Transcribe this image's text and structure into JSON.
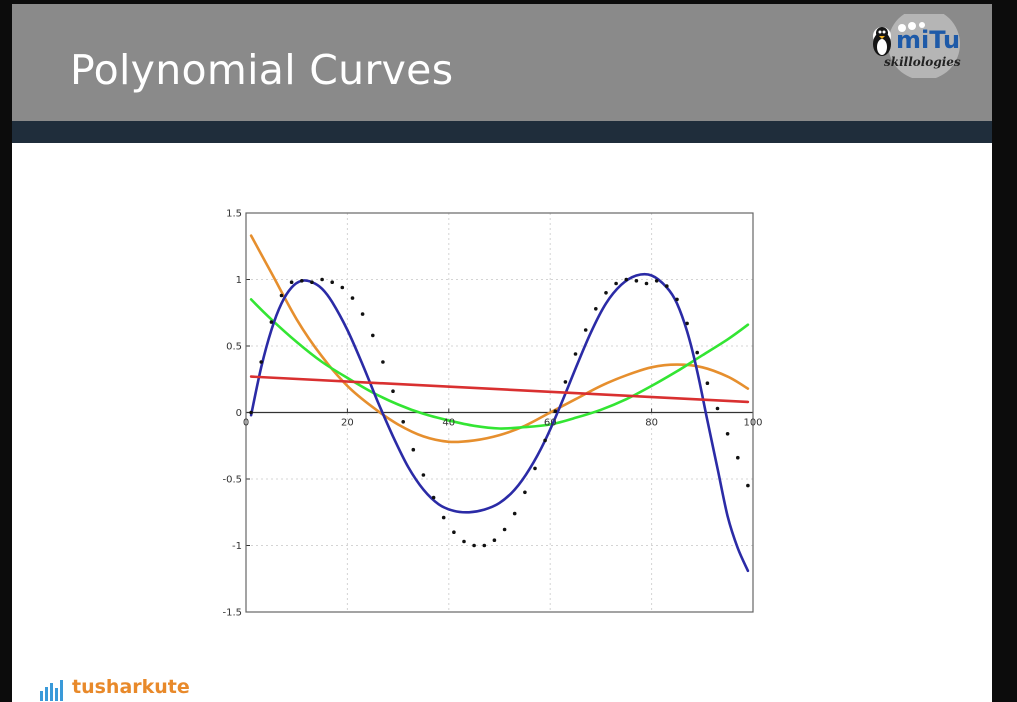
{
  "slide": {
    "title": "Polynomial Curves"
  },
  "logo": {
    "brand": "miTu",
    "tagline": "skillologies"
  },
  "footer": {
    "brand": "tusharkute"
  },
  "colors": {
    "title_bar": "#8a8a8a",
    "stripe": "#1f2d3b",
    "footer_brand": "#e8892a"
  },
  "chart_data": {
    "type": "line",
    "title": "",
    "xlabel": "",
    "ylabel": "",
    "xlim": [
      0,
      100
    ],
    "ylim": [
      -1.5,
      1.5
    ],
    "xticks": [
      {
        "v": 0,
        "label": "0"
      },
      {
        "v": 20,
        "label": "20"
      },
      {
        "v": 40,
        "label": "40"
      },
      {
        "v": 60,
        "label": "60"
      },
      {
        "v": 80,
        "label": "80"
      },
      {
        "v": 100,
        "label": "100"
      }
    ],
    "yticks": [
      {
        "v": 1.5,
        "label": "1.5"
      },
      {
        "v": 1,
        "label": "1"
      },
      {
        "v": 0.5,
        "label": "0.5"
      },
      {
        "v": 0,
        "label": "0"
      },
      {
        "v": -0.5,
        "label": "-0.5"
      },
      {
        "v": -1,
        "label": "-1"
      },
      {
        "v": -1.5,
        "label": "-1.5"
      }
    ],
    "grid": true,
    "series": [
      {
        "style": "dots",
        "color": "#111111",
        "x": [
          1,
          3,
          5,
          7,
          9,
          11,
          13,
          15,
          17,
          19,
          21,
          23,
          25,
          27,
          29,
          31,
          33,
          35,
          37,
          39,
          41,
          43,
          45,
          47,
          49,
          51,
          53,
          55,
          57,
          59,
          61,
          63,
          65,
          67,
          69,
          71,
          73,
          75,
          77,
          79,
          81,
          83,
          85,
          87,
          89,
          91,
          93,
          95,
          97,
          99
        ],
        "y": [
          0.0,
          0.38,
          0.68,
          0.88,
          0.98,
          0.99,
          0.98,
          1.0,
          0.98,
          0.94,
          0.86,
          0.74,
          0.58,
          0.38,
          0.16,
          -0.07,
          -0.28,
          -0.47,
          -0.64,
          -0.79,
          -0.9,
          -0.97,
          -1.0,
          -1.0,
          -0.96,
          -0.88,
          -0.76,
          -0.6,
          -0.42,
          -0.21,
          0.01,
          0.23,
          0.44,
          0.62,
          0.78,
          0.9,
          0.97,
          1.0,
          0.99,
          0.97,
          0.99,
          0.95,
          0.85,
          0.67,
          0.45,
          0.22,
          0.03,
          -0.16,
          -0.34,
          -0.55
        ]
      },
      {
        "style": "line",
        "color": "#2b2ba6",
        "x": [
          1,
          3,
          5,
          7,
          9,
          11,
          13,
          15,
          17,
          20,
          23,
          26,
          29,
          32,
          35,
          38,
          41,
          44,
          47,
          50,
          53,
          56,
          59,
          62,
          65,
          68,
          71,
          74,
          77,
          80,
          83,
          85,
          87,
          89,
          91,
          93,
          95,
          97,
          99
        ],
        "y": [
          -0.02,
          0.34,
          0.62,
          0.82,
          0.94,
          0.99,
          0.98,
          0.93,
          0.83,
          0.62,
          0.36,
          0.08,
          -0.18,
          -0.41,
          -0.58,
          -0.69,
          -0.74,
          -0.75,
          -0.73,
          -0.68,
          -0.58,
          -0.42,
          -0.21,
          0.05,
          0.33,
          0.6,
          0.82,
          0.96,
          1.03,
          1.03,
          0.94,
          0.82,
          0.61,
          0.31,
          -0.06,
          -0.42,
          -0.78,
          -1.02,
          -1.19
        ]
      },
      {
        "style": "line",
        "color": "#e68f2e",
        "x": [
          1,
          5,
          10,
          15,
          20,
          25,
          30,
          35,
          40,
          45,
          50,
          55,
          60,
          65,
          70,
          75,
          80,
          85,
          90,
          95,
          99
        ],
        "y": [
          1.33,
          1.05,
          0.7,
          0.42,
          0.2,
          0.04,
          -0.09,
          -0.18,
          -0.22,
          -0.21,
          -0.17,
          -0.1,
          0.0,
          0.1,
          0.2,
          0.28,
          0.34,
          0.36,
          0.34,
          0.27,
          0.18
        ]
      },
      {
        "style": "line",
        "color": "#33e533",
        "x": [
          1,
          5,
          10,
          15,
          20,
          25,
          30,
          35,
          40,
          45,
          50,
          55,
          60,
          65,
          70,
          75,
          80,
          85,
          90,
          95,
          99
        ],
        "y": [
          0.85,
          0.7,
          0.53,
          0.38,
          0.26,
          0.15,
          0.06,
          -0.01,
          -0.06,
          -0.1,
          -0.12,
          -0.11,
          -0.09,
          -0.04,
          0.02,
          0.1,
          0.2,
          0.31,
          0.43,
          0.55,
          0.66
        ]
      },
      {
        "style": "line",
        "color": "#d93030",
        "x": [
          1,
          99
        ],
        "y": [
          0.27,
          0.08
        ]
      }
    ]
  }
}
